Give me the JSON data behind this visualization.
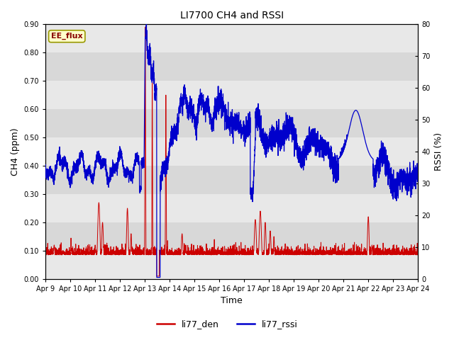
{
  "title": "LI7700 CH4 and RSSI",
  "xlabel": "Time",
  "ylabel_left": "CH4 (ppm)",
  "ylabel_right": "RSSI (%)",
  "annotation": "EE_flux",
  "ylim_left": [
    0.0,
    0.9
  ],
  "ylim_right": [
    0,
    80
  ],
  "yticks_left": [
    0.0,
    0.1,
    0.2,
    0.3,
    0.4,
    0.5,
    0.6,
    0.7,
    0.8,
    0.9
  ],
  "yticks_right": [
    0,
    10,
    20,
    30,
    40,
    50,
    60,
    70,
    80
  ],
  "date_start": 9,
  "date_end": 24,
  "bg_color_light": "#e8e8e8",
  "bg_color_dark": "#d8d8d8",
  "line_color_ch4": "#cc0000",
  "line_color_rssi": "#0000cc",
  "legend_labels": [
    "li77_den",
    "li77_rssi"
  ],
  "legend_colors": [
    "#cc0000",
    "#0000cc"
  ]
}
